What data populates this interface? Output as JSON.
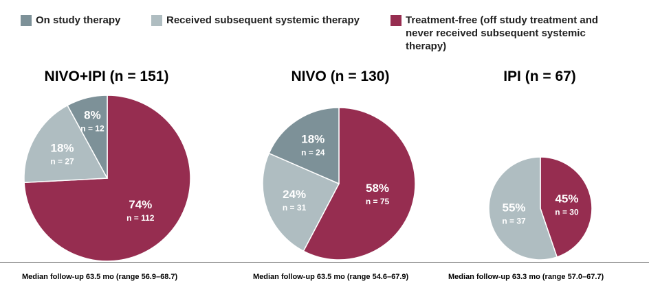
{
  "legend": [
    {
      "label": "On study therapy",
      "color": "#7d9198"
    },
    {
      "label": "Received subsequent systemic therapy",
      "color": "#afbdc1"
    },
    {
      "label": "Treatment-free (off study treatment and never received subsequent systemic therapy)",
      "color": "#962d50"
    }
  ],
  "chart_data": [
    {
      "type": "pie",
      "title": "NIVO+IPI (n = 151)",
      "footnote": "Median follow-up 63.5 mo (range 56.9–68.7)",
      "slices": [
        {
          "category": "On study therapy",
          "percent": "8%",
          "n_label": "n = 12",
          "value": 12
        },
        {
          "category": "Received subsequent systemic therapy",
          "percent": "18%",
          "n_label": "n = 27",
          "value": 27
        },
        {
          "category": "Treatment-free (off study treatment and never received subsequent systemic therapy)",
          "percent": "74%",
          "n_label": "n = 112",
          "value": 112
        }
      ]
    },
    {
      "type": "pie",
      "title": "NIVO (n = 130)",
      "footnote": "Median follow-up 63.5 mo (range 54.6–67.9)",
      "slices": [
        {
          "category": "On study therapy",
          "percent": "18%",
          "n_label": "n = 24",
          "value": 24
        },
        {
          "category": "Received subsequent systemic therapy",
          "percent": "24%",
          "n_label": "n = 31",
          "value": 31
        },
        {
          "category": "Treatment-free (off study treatment and never received subsequent systemic therapy)",
          "percent": "58%",
          "n_label": "n = 75",
          "value": 75
        }
      ]
    },
    {
      "type": "pie",
      "title": "IPI (n = 67)",
      "footnote": "Median follow-up 63.3 mo (range 57.0–67.7)",
      "slices": [
        {
          "category": "Received subsequent systemic therapy",
          "percent": "55%",
          "n_label": "n = 37",
          "value": 37
        },
        {
          "category": "Treatment-free (off study treatment and never received subsequent systemic therapy)",
          "percent": "45%",
          "n_label": "n = 30",
          "value": 30
        }
      ]
    }
  ]
}
